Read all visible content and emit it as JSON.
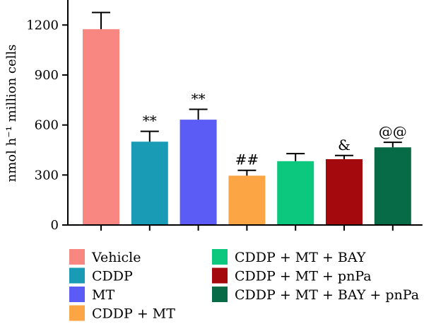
{
  "chart_data": {
    "type": "bar",
    "categories": [
      "Vehicle",
      "CDDP",
      "MT",
      "CDDP + MT",
      "CDDP + MT + BAY",
      "CDDP + MT + pnPa",
      "CDDP + MT + BAY + pnPa"
    ],
    "values": [
      1175,
      500,
      632,
      296,
      383,
      395,
      466
    ],
    "errors": [
      100,
      62,
      62,
      32,
      45,
      22,
      30
    ],
    "annotations": [
      "",
      "**",
      "**",
      "##",
      "",
      "&",
      "@@"
    ],
    "colors": [
      "#f98781",
      "#1a9bb5",
      "#5b5bf5",
      "#fba545",
      "#0cc77e",
      "#a40a0d",
      "#076b48"
    ],
    "ylabel": "nmol h⁻¹ million cells",
    "ylim": [
      0,
      1350
    ],
    "yticks": [
      0,
      300,
      600,
      900,
      1200
    ],
    "legend": {
      "placement": "bottom",
      "entries": [
        "Vehicle",
        "CDDP",
        "MT",
        "CDDP + MT",
        "CDDP + MT + BAY",
        "CDDP + MT + pnPa",
        "CDDP + MT + BAY + pnPa"
      ]
    }
  }
}
